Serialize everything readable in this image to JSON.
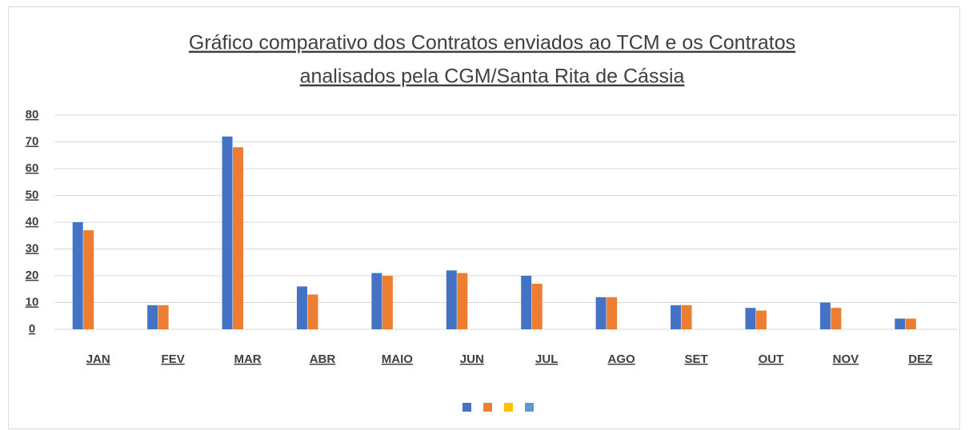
{
  "chart_data": {
    "type": "bar",
    "title": [
      "Gráfico comparativo dos Contratos enviados ao TCM e os Contratos",
      "analisados pela CGM/Santa Rita de Cássia"
    ],
    "categories": [
      "JAN",
      "FEV",
      "MAR",
      "ABR",
      "MAIO",
      "JUN",
      "JUL",
      "AGO",
      "SET",
      "OUT",
      "NOV",
      "DEZ"
    ],
    "series": [
      {
        "color": "#4472c4",
        "values": [
          40,
          9,
          72,
          16,
          21,
          22,
          20,
          12,
          9,
          8,
          10,
          4
        ]
      },
      {
        "color": "#ed7d31",
        "values": [
          37,
          9,
          68,
          13,
          20,
          21,
          17,
          12,
          9,
          7,
          8,
          4
        ]
      },
      {
        "color": "#ffc000",
        "values": [
          null,
          null,
          null,
          null,
          null,
          null,
          null,
          null,
          null,
          null,
          null,
          null
        ]
      },
      {
        "color": "#5b9bd5",
        "values": [
          null,
          null,
          null,
          null,
          null,
          null,
          null,
          null,
          null,
          null,
          null,
          null
        ]
      }
    ],
    "ylim": [
      0,
      80
    ],
    "yticks": [
      0,
      10,
      20,
      30,
      40,
      50,
      60,
      70,
      80
    ],
    "grid": true,
    "legend": "bottom"
  }
}
